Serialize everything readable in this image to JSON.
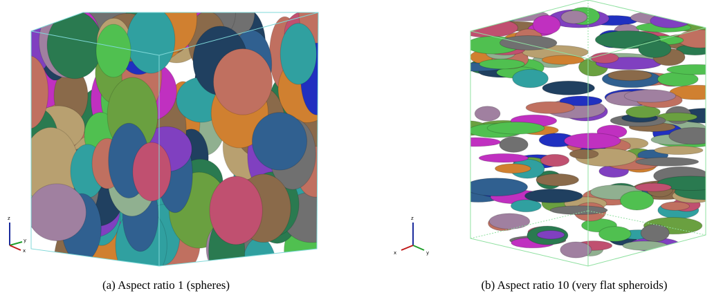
{
  "panels": [
    {
      "caption": "(a) Aspect ratio 1 (spheres)",
      "triad": {
        "z": "z",
        "y": "y",
        "x": "x"
      }
    },
    {
      "caption": "(b) Aspect ratio 10 (very flat spheroids)",
      "triad": {
        "z": "z",
        "y": "y",
        "x": "x"
      }
    }
  ]
}
